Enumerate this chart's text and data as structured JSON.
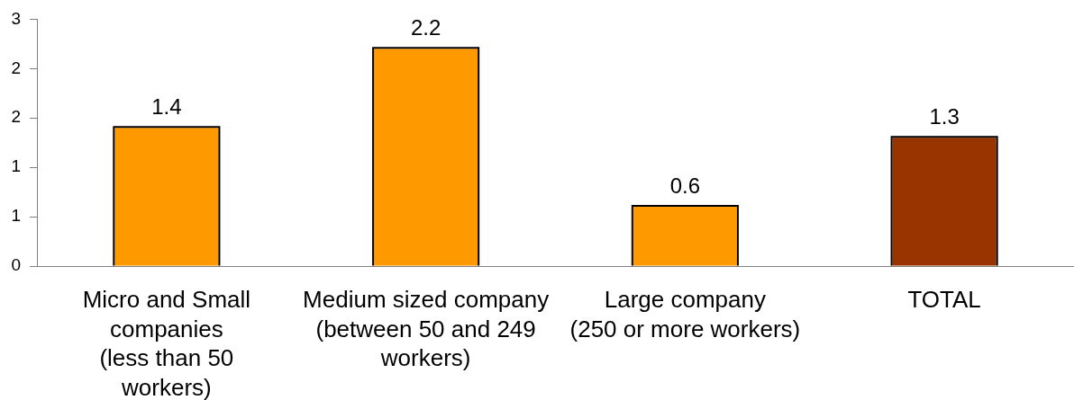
{
  "chart_data": {
    "type": "bar",
    "categories": [
      "Micro and Small\ncompanies\n(less than 50\nworkers)",
      "Medium sized company\n(between 50 and 249\nworkers)",
      "Large company\n(250 or more workers)",
      "TOTAL"
    ],
    "values": [
      1.4,
      2.2,
      0.6,
      1.3
    ],
    "colors": [
      "#ff9900",
      "#ff9900",
      "#ff9900",
      "#993300"
    ],
    "ylim": [
      0,
      2.5
    ],
    "yticks": [
      0,
      {
        "value": 0.5,
        "label": "1"
      },
      1,
      {
        "value": 1.5,
        "label": "2"
      },
      2,
      {
        "value": 2.5,
        "label": "3"
      }
    ],
    "data_labels": true
  }
}
